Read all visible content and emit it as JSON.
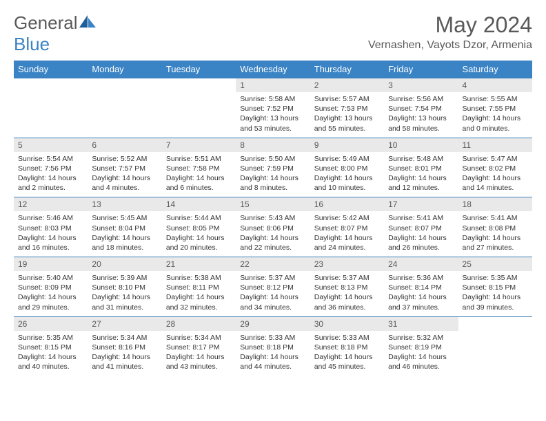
{
  "brand": {
    "part1": "General",
    "part2": "Blue"
  },
  "title": "May 2024",
  "location": "Vernashen, Vayots Dzor, Armenia",
  "colors": {
    "header_bg": "#3a83c4",
    "header_text": "#ffffff",
    "daynum_bg": "#e9e9e9",
    "text_gray": "#595959",
    "border": "#3a7db8"
  },
  "day_names": [
    "Sunday",
    "Monday",
    "Tuesday",
    "Wednesday",
    "Thursday",
    "Friday",
    "Saturday"
  ],
  "weeks": [
    [
      {
        "n": "",
        "sr": "",
        "ss": "",
        "dl": ""
      },
      {
        "n": "",
        "sr": "",
        "ss": "",
        "dl": ""
      },
      {
        "n": "",
        "sr": "",
        "ss": "",
        "dl": ""
      },
      {
        "n": "1",
        "sr": "Sunrise: 5:58 AM",
        "ss": "Sunset: 7:52 PM",
        "dl": "Daylight: 13 hours and 53 minutes."
      },
      {
        "n": "2",
        "sr": "Sunrise: 5:57 AM",
        "ss": "Sunset: 7:53 PM",
        "dl": "Daylight: 13 hours and 55 minutes."
      },
      {
        "n": "3",
        "sr": "Sunrise: 5:56 AM",
        "ss": "Sunset: 7:54 PM",
        "dl": "Daylight: 13 hours and 58 minutes."
      },
      {
        "n": "4",
        "sr": "Sunrise: 5:55 AM",
        "ss": "Sunset: 7:55 PM",
        "dl": "Daylight: 14 hours and 0 minutes."
      }
    ],
    [
      {
        "n": "5",
        "sr": "Sunrise: 5:54 AM",
        "ss": "Sunset: 7:56 PM",
        "dl": "Daylight: 14 hours and 2 minutes."
      },
      {
        "n": "6",
        "sr": "Sunrise: 5:52 AM",
        "ss": "Sunset: 7:57 PM",
        "dl": "Daylight: 14 hours and 4 minutes."
      },
      {
        "n": "7",
        "sr": "Sunrise: 5:51 AM",
        "ss": "Sunset: 7:58 PM",
        "dl": "Daylight: 14 hours and 6 minutes."
      },
      {
        "n": "8",
        "sr": "Sunrise: 5:50 AM",
        "ss": "Sunset: 7:59 PM",
        "dl": "Daylight: 14 hours and 8 minutes."
      },
      {
        "n": "9",
        "sr": "Sunrise: 5:49 AM",
        "ss": "Sunset: 8:00 PM",
        "dl": "Daylight: 14 hours and 10 minutes."
      },
      {
        "n": "10",
        "sr": "Sunrise: 5:48 AM",
        "ss": "Sunset: 8:01 PM",
        "dl": "Daylight: 14 hours and 12 minutes."
      },
      {
        "n": "11",
        "sr": "Sunrise: 5:47 AM",
        "ss": "Sunset: 8:02 PM",
        "dl": "Daylight: 14 hours and 14 minutes."
      }
    ],
    [
      {
        "n": "12",
        "sr": "Sunrise: 5:46 AM",
        "ss": "Sunset: 8:03 PM",
        "dl": "Daylight: 14 hours and 16 minutes."
      },
      {
        "n": "13",
        "sr": "Sunrise: 5:45 AM",
        "ss": "Sunset: 8:04 PM",
        "dl": "Daylight: 14 hours and 18 minutes."
      },
      {
        "n": "14",
        "sr": "Sunrise: 5:44 AM",
        "ss": "Sunset: 8:05 PM",
        "dl": "Daylight: 14 hours and 20 minutes."
      },
      {
        "n": "15",
        "sr": "Sunrise: 5:43 AM",
        "ss": "Sunset: 8:06 PM",
        "dl": "Daylight: 14 hours and 22 minutes."
      },
      {
        "n": "16",
        "sr": "Sunrise: 5:42 AM",
        "ss": "Sunset: 8:07 PM",
        "dl": "Daylight: 14 hours and 24 minutes."
      },
      {
        "n": "17",
        "sr": "Sunrise: 5:41 AM",
        "ss": "Sunset: 8:07 PM",
        "dl": "Daylight: 14 hours and 26 minutes."
      },
      {
        "n": "18",
        "sr": "Sunrise: 5:41 AM",
        "ss": "Sunset: 8:08 PM",
        "dl": "Daylight: 14 hours and 27 minutes."
      }
    ],
    [
      {
        "n": "19",
        "sr": "Sunrise: 5:40 AM",
        "ss": "Sunset: 8:09 PM",
        "dl": "Daylight: 14 hours and 29 minutes."
      },
      {
        "n": "20",
        "sr": "Sunrise: 5:39 AM",
        "ss": "Sunset: 8:10 PM",
        "dl": "Daylight: 14 hours and 31 minutes."
      },
      {
        "n": "21",
        "sr": "Sunrise: 5:38 AM",
        "ss": "Sunset: 8:11 PM",
        "dl": "Daylight: 14 hours and 32 minutes."
      },
      {
        "n": "22",
        "sr": "Sunrise: 5:37 AM",
        "ss": "Sunset: 8:12 PM",
        "dl": "Daylight: 14 hours and 34 minutes."
      },
      {
        "n": "23",
        "sr": "Sunrise: 5:37 AM",
        "ss": "Sunset: 8:13 PM",
        "dl": "Daylight: 14 hours and 36 minutes."
      },
      {
        "n": "24",
        "sr": "Sunrise: 5:36 AM",
        "ss": "Sunset: 8:14 PM",
        "dl": "Daylight: 14 hours and 37 minutes."
      },
      {
        "n": "25",
        "sr": "Sunrise: 5:35 AM",
        "ss": "Sunset: 8:15 PM",
        "dl": "Daylight: 14 hours and 39 minutes."
      }
    ],
    [
      {
        "n": "26",
        "sr": "Sunrise: 5:35 AM",
        "ss": "Sunset: 8:15 PM",
        "dl": "Daylight: 14 hours and 40 minutes."
      },
      {
        "n": "27",
        "sr": "Sunrise: 5:34 AM",
        "ss": "Sunset: 8:16 PM",
        "dl": "Daylight: 14 hours and 41 minutes."
      },
      {
        "n": "28",
        "sr": "Sunrise: 5:34 AM",
        "ss": "Sunset: 8:17 PM",
        "dl": "Daylight: 14 hours and 43 minutes."
      },
      {
        "n": "29",
        "sr": "Sunrise: 5:33 AM",
        "ss": "Sunset: 8:18 PM",
        "dl": "Daylight: 14 hours and 44 minutes."
      },
      {
        "n": "30",
        "sr": "Sunrise: 5:33 AM",
        "ss": "Sunset: 8:18 PM",
        "dl": "Daylight: 14 hours and 45 minutes."
      },
      {
        "n": "31",
        "sr": "Sunrise: 5:32 AM",
        "ss": "Sunset: 8:19 PM",
        "dl": "Daylight: 14 hours and 46 minutes."
      },
      {
        "n": "",
        "sr": "",
        "ss": "",
        "dl": ""
      }
    ]
  ]
}
